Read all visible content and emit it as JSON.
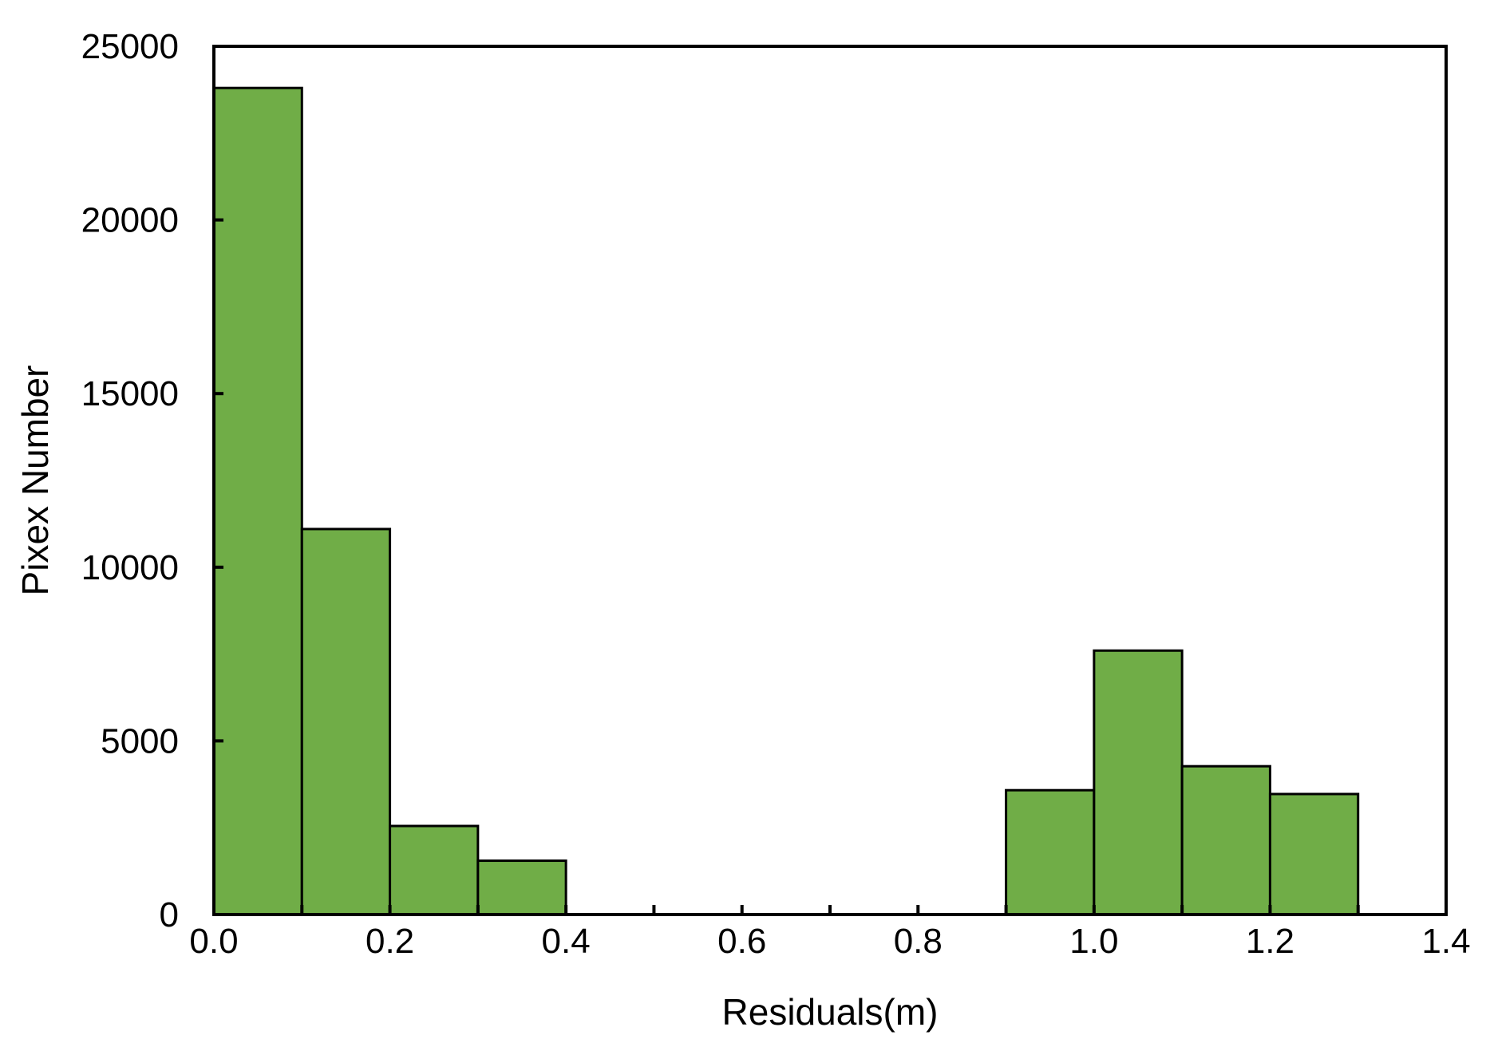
{
  "chart_data": {
    "type": "bar",
    "title": "",
    "xlabel": "Residuals(m)",
    "ylabel": "Pixex Number",
    "xlim": [
      0,
      1.4
    ],
    "ylim": [
      0,
      25000
    ],
    "grid": false,
    "bar_color": "#70ad47",
    "edge_color": "#000000",
    "x_ticks": [
      "0.0",
      "0.2",
      "0.4",
      "0.6",
      "0.8",
      "1.0",
      "1.2",
      "1.4"
    ],
    "x_tick_values": [
      0,
      0.2,
      0.4,
      0.6,
      0.8,
      1.0,
      1.2,
      1.4
    ],
    "y_ticks": [
      "0",
      "5000",
      "10000",
      "15000",
      "20000",
      "25000"
    ],
    "y_tick_values": [
      0,
      5000,
      10000,
      15000,
      20000,
      25000
    ],
    "bins": [
      {
        "x0": 0.0,
        "x1": 0.1,
        "value": 23800
      },
      {
        "x0": 0.1,
        "x1": 0.2,
        "value": 11100
      },
      {
        "x0": 0.2,
        "x1": 0.3,
        "value": 2550
      },
      {
        "x0": 0.3,
        "x1": 0.4,
        "value": 1550
      },
      {
        "x0": 0.4,
        "x1": 0.5,
        "value": 0
      },
      {
        "x0": 0.5,
        "x1": 0.6,
        "value": 0
      },
      {
        "x0": 0.6,
        "x1": 0.7,
        "value": 0
      },
      {
        "x0": 0.7,
        "x1": 0.8,
        "value": 0
      },
      {
        "x0": 0.8,
        "x1": 0.9,
        "value": 0
      },
      {
        "x0": 0.9,
        "x1": 1.0,
        "value": 3580
      },
      {
        "x0": 1.0,
        "x1": 1.1,
        "value": 7600
      },
      {
        "x0": 1.1,
        "x1": 1.2,
        "value": 4270
      },
      {
        "x0": 1.2,
        "x1": 1.3,
        "value": 3470
      },
      {
        "x0": 1.3,
        "x1": 1.4,
        "value": 0
      }
    ]
  }
}
